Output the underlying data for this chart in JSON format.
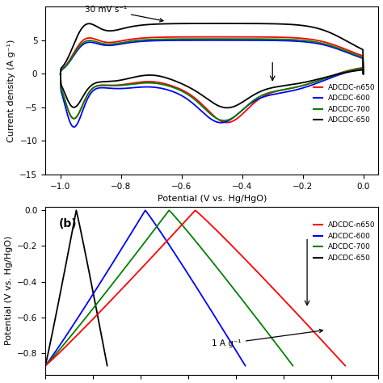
{
  "panel_a": {
    "xlabel": "Potential (V vs. Hg/HgO)",
    "ylabel": "Current density (A g⁻¹)",
    "xlim": [
      -1.05,
      0.05
    ],
    "ylim": [
      -15,
      10
    ],
    "yticks": [
      -15,
      -10,
      -5,
      0,
      5
    ],
    "xticks": [
      -1.0,
      -0.8,
      -0.6,
      -0.4,
      -0.2,
      0.0
    ],
    "annotation_text": "30 mV s⁻¹",
    "legend_labels": [
      "ADCDC-n650",
      "ADCDC-600",
      "ADCDC-700",
      "ADCDC-650"
    ],
    "colors": [
      "#ff0000",
      "#0000ff",
      "#008000",
      "#000000"
    ]
  },
  "panel_b": {
    "title": "(b)",
    "ylabel": "Potential (V vs. Hg/HgO)",
    "ylim": [
      -0.92,
      0.02
    ],
    "yticks": [
      0.0,
      -0.2,
      -0.4,
      -0.6,
      -0.8
    ],
    "annotation_text": "1 A g⁻¹",
    "legend_labels": [
      "ADCDC-n650",
      "ADCDC-600",
      "ADCDC-700",
      "ADCDC-650"
    ],
    "colors": [
      "#ff0000",
      "#0000ff",
      "#008000",
      "#000000"
    ],
    "gcd_params": {
      "black": {
        "t_half": 0.13,
        "v_min": -0.87
      },
      "blue": {
        "t_half": 0.42,
        "v_min": -0.87
      },
      "green": {
        "t_half": 0.52,
        "v_min": -0.87
      },
      "red": {
        "t_half": 0.63,
        "v_min": -0.87
      }
    }
  }
}
